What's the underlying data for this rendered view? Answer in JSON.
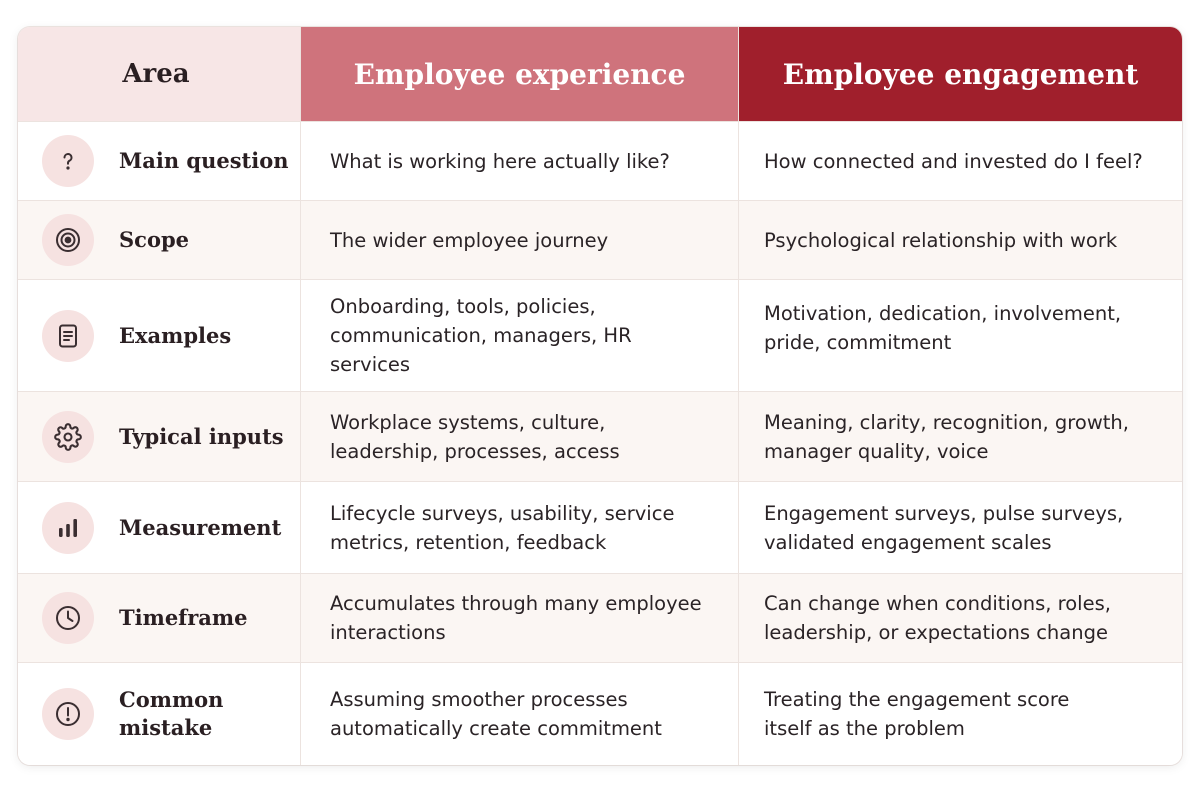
{
  "header": {
    "area": "Area",
    "experience": "Employee experience",
    "engagement": "Employee engagement"
  },
  "rows": [
    {
      "label": "Main question",
      "icon": "question-icon",
      "experience": "What is working here actually like?",
      "engagement": "How connected and invested do I feel?"
    },
    {
      "label": "Scope",
      "icon": "target-icon",
      "experience": "The wider employee journey",
      "engagement": "Psychological relationship with work"
    },
    {
      "label": "Examples",
      "icon": "document-icon",
      "experience": "Onboarding, tools, policies, communication, managers, HR services",
      "engagement": "Motivation, dedication, involvement, pride, commitment"
    },
    {
      "label": "Typical inputs",
      "icon": "gear-icon",
      "experience": "Workplace systems, culture, leadership, processes, access",
      "engagement": "Meaning, clarity, recognition, growth, manager quality, voice"
    },
    {
      "label": "Measurement",
      "icon": "bar-chart-icon",
      "experience": "Lifecycle surveys, usability, service metrics, retention, feedback",
      "engagement": "Engagement surveys, pulse surveys, validated engagement scales"
    },
    {
      "label": "Timeframe",
      "icon": "clock-icon",
      "experience": "Accumulates through many employee interactions",
      "engagement": "Can change when conditions, roles, leadership, or expectations change"
    },
    {
      "label": "Common mistake",
      "icon": "alert-icon",
      "experience": "Assuming smoother processes automatically create commitment",
      "engagement": "Treating the engagement score itself as the problem"
    }
  ],
  "colors": {
    "header_area_bg": "#f7e6e6",
    "header_experience_bg": "#cf737c",
    "header_engagement_bg": "#a01f2c",
    "icon_circle_bg": "#f6e2e1",
    "alt_row_bg": "#fbf6f3"
  }
}
